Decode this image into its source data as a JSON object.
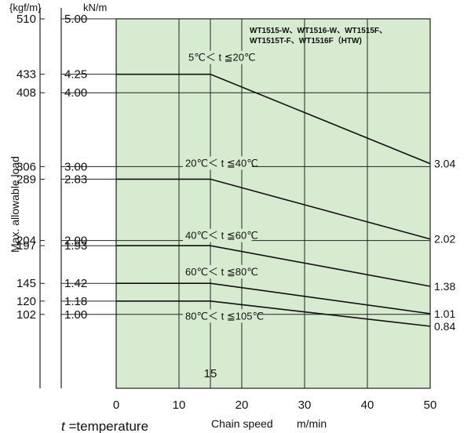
{
  "chart_data": {
    "type": "line",
    "title": "",
    "subtitle": "WT1515-W、WT1516-W、WT1515F、\nWT1515T-F、WT1516F（HTW)",
    "xlabel": "Chain speed",
    "xunit": "m/min",
    "ylabel": "Max. allowable load",
    "yunit_left": "{kgf/m}",
    "yunit_right": "kN/m",
    "xlim": [
      0,
      50
    ],
    "ylim": [
      0,
      5.0
    ],
    "xticks": [
      0,
      10,
      20,
      30,
      40,
      50
    ],
    "extra_xtick": {
      "value": 15,
      "label": "15"
    },
    "yticks_kn": [
      {
        "value": 5.0,
        "label": "5.00",
        "kgf": "510"
      },
      {
        "value": 4.25,
        "label": "4.25",
        "kgf": "433"
      },
      {
        "value": 4.0,
        "label": "4.00",
        "kgf": "408"
      },
      {
        "value": 3.0,
        "label": "3.00",
        "kgf": "306"
      },
      {
        "value": 2.83,
        "label": "2.83",
        "kgf": "289"
      },
      {
        "value": 2.0,
        "label": "2.00",
        "kgf": "204"
      },
      {
        "value": 1.93,
        "label": "1.93",
        "kgf": "197"
      },
      {
        "value": 1.42,
        "label": "1.42",
        "kgf": "145"
      },
      {
        "value": 1.18,
        "label": "1.18",
        "kgf": "120"
      },
      {
        "value": 1.0,
        "label": "1.00",
        "kgf": "102"
      }
    ],
    "series": [
      {
        "name": "5℃＜ t ≦20℃",
        "x": [
          0,
          15,
          50
        ],
        "y": [
          4.25,
          4.25,
          3.04
        ],
        "end_label": "3.04",
        "label_x": 11.5,
        "label_y": 4.43
      },
      {
        "name": "20℃＜ t ≦40℃",
        "x": [
          0,
          15,
          50
        ],
        "y": [
          2.83,
          2.83,
          2.02
        ],
        "end_label": "2.02",
        "label_x": 11.0,
        "label_y": 3.0
      },
      {
        "name": "40℃＜ t ≦60℃",
        "x": [
          0,
          15,
          50
        ],
        "y": [
          1.93,
          1.93,
          1.38
        ],
        "end_label": "1.38",
        "label_x": 11.0,
        "label_y": 2.02
      },
      {
        "name": "60℃＜ t ≦80℃",
        "x": [
          0,
          15,
          50
        ],
        "y": [
          1.42,
          1.42,
          1.01
        ],
        "end_label": "1.01",
        "label_x": 11.0,
        "label_y": 1.53
      },
      {
        "name": "80℃＜ t ≦105℃",
        "x": [
          0,
          15,
          50
        ],
        "y": [
          1.18,
          1.18,
          0.84
        ],
        "end_label": "0.84",
        "label_x": 11.0,
        "label_y": 0.93
      }
    ],
    "grid": true,
    "background_color": "#d6ebd0",
    "line_color": "#111111",
    "footnote": {
      "italic": "t",
      "rest": " =temperature"
    }
  }
}
